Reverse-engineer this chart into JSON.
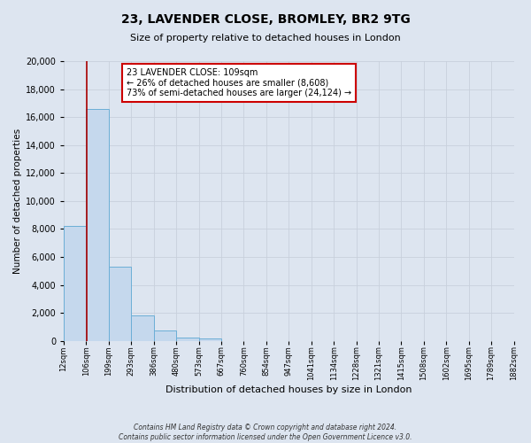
{
  "title_line1": "23, LAVENDER CLOSE, BROMLEY, BR2 9TG",
  "title_line2": "Size of property relative to detached houses in London",
  "xlabel": "Distribution of detached houses by size in London",
  "ylabel": "Number of detached properties",
  "bin_labels": [
    "12sqm",
    "106sqm",
    "199sqm",
    "293sqm",
    "386sqm",
    "480sqm",
    "573sqm",
    "667sqm",
    "760sqm",
    "854sqm",
    "947sqm",
    "1041sqm",
    "1134sqm",
    "1228sqm",
    "1321sqm",
    "1415sqm",
    "1508sqm",
    "1602sqm",
    "1695sqm",
    "1789sqm",
    "1882sqm"
  ],
  "bar_values": [
    8200,
    16600,
    5300,
    1800,
    750,
    250,
    200,
    0,
    0,
    0,
    0,
    0,
    0,
    0,
    0,
    0,
    0,
    0,
    0,
    0,
    0
  ],
  "bar_color": "#c5d8ed",
  "bar_edge_color": "#6baed6",
  "property_line_color": "#aa0000",
  "annotation_title": "23 LAVENDER CLOSE: 109sqm",
  "annotation_line1": "← 26% of detached houses are smaller (8,608)",
  "annotation_line2": "73% of semi-detached houses are larger (24,124) →",
  "annotation_box_facecolor": "#ffffff",
  "annotation_box_edgecolor": "#cc0000",
  "ylim": [
    0,
    20000
  ],
  "yticks": [
    0,
    2000,
    4000,
    6000,
    8000,
    10000,
    12000,
    14000,
    16000,
    18000,
    20000
  ],
  "grid_color": "#c8d0dc",
  "bg_color": "#dde5f0",
  "footnote1": "Contains HM Land Registry data © Crown copyright and database right 2024.",
  "footnote2": "Contains public sector information licensed under the Open Government Licence v3.0."
}
